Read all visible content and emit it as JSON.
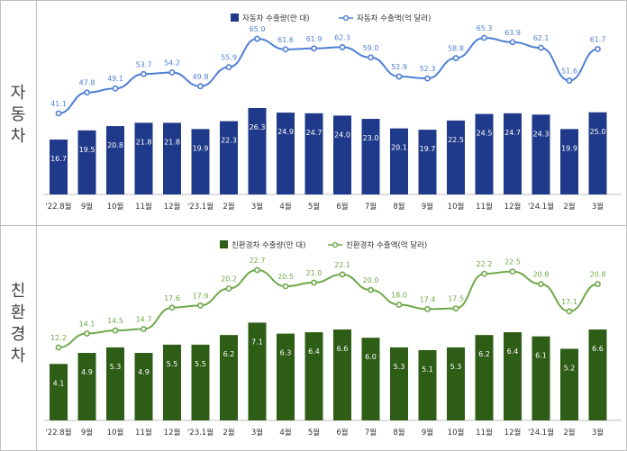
{
  "panels": [
    {
      "side_label": "자동차",
      "bar_color": "#1f3a8a",
      "line_color": "#4f7fd3"
    },
    {
      "side_label": "친환경차",
      "bar_color": "#2e5d16",
      "line_color": "#6fa84a"
    }
  ],
  "chart_data": [
    {
      "type": "bar",
      "categories": [
        "'22.8월",
        "9월",
        "10월",
        "11월",
        "12월",
        "'23.1월",
        "2월",
        "3월",
        "4월",
        "5월",
        "6월",
        "7월",
        "8월",
        "9월",
        "10월",
        "11월",
        "12월",
        "'24.1월",
        "2월",
        "3월"
      ],
      "series": [
        {
          "name": "자동차 수출량(만 대)",
          "type": "bar",
          "values": [
            16.7,
            19.5,
            20.8,
            21.8,
            21.8,
            19.9,
            22.3,
            26.3,
            24.9,
            24.7,
            24.0,
            23.0,
            20.1,
            19.7,
            22.5,
            24.5,
            24.7,
            24.3,
            19.9,
            25.0
          ]
        },
        {
          "name": "자동차 수출액(억 달러)",
          "type": "line",
          "values": [
            41.1,
            47.8,
            49.1,
            53.7,
            54.2,
            49.8,
            55.9,
            65.0,
            61.6,
            61.9,
            62.3,
            59.0,
            52.9,
            52.3,
            58.8,
            65.3,
            63.9,
            62.1,
            51.6,
            61.7
          ]
        }
      ]
    },
    {
      "type": "bar",
      "categories": [
        "'22.8월",
        "9월",
        "10월",
        "11월",
        "12월",
        "'23.1월",
        "2월",
        "3월",
        "4월",
        "5월",
        "6월",
        "7월",
        "8월",
        "9월",
        "10월",
        "11월",
        "12월",
        "'24.1월",
        "2월",
        "3월"
      ],
      "series": [
        {
          "name": "친환경차 수출량(만 대)",
          "type": "bar",
          "values": [
            4.1,
            4.9,
            5.3,
            4.9,
            5.5,
            5.5,
            6.2,
            7.1,
            6.3,
            6.4,
            6.6,
            6.0,
            5.3,
            5.1,
            5.3,
            6.2,
            6.4,
            6.1,
            5.2,
            6.6
          ]
        },
        {
          "name": "친환경차 수출액(억 달러)",
          "type": "line",
          "values": [
            12.2,
            14.1,
            14.5,
            14.7,
            17.6,
            17.9,
            20.2,
            22.7,
            20.5,
            21.0,
            22.1,
            20.0,
            18.0,
            17.4,
            17.5,
            22.2,
            22.5,
            20.8,
            17.1,
            20.8
          ]
        }
      ]
    }
  ]
}
